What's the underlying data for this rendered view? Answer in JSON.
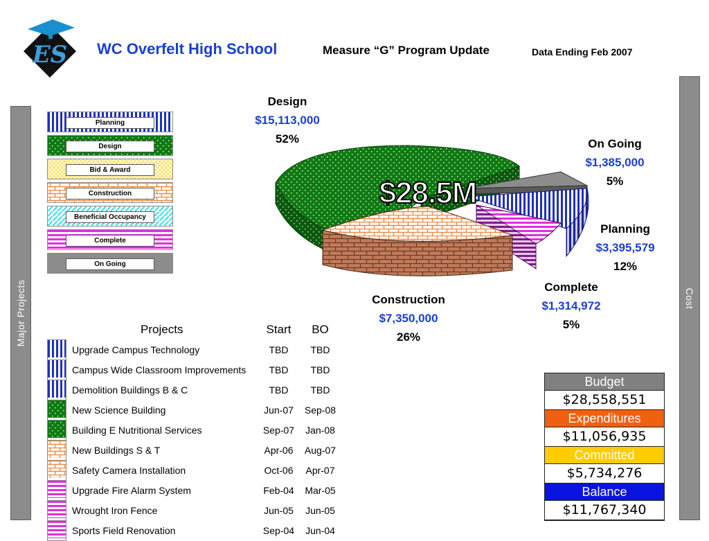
{
  "header": {
    "school": "WC Overfelt High School",
    "program": "Measure “G” Program Update",
    "data_ending": "Data Ending Feb 2007",
    "logo_text": "ES"
  },
  "side_labels": {
    "left": "Major Projects",
    "right": "Cost"
  },
  "legend": [
    {
      "label": "Planning",
      "pattern": "vstripe-blue"
    },
    {
      "label": "Design",
      "pattern": "dots-green"
    },
    {
      "label": "Bid & Award",
      "pattern": "crosshatch-yellow"
    },
    {
      "label": "Construction",
      "pattern": "brick-orange"
    },
    {
      "label": "Beneficial Occupancy",
      "pattern": "diag-cyan"
    },
    {
      "label": "Complete",
      "pattern": "hstripe-magenta"
    },
    {
      "label": "On Going",
      "pattern": "solid-gray"
    }
  ],
  "chart_data": {
    "type": "pie",
    "title": "$28.5M",
    "slices": [
      {
        "name": "Design",
        "value": 15113000,
        "value_label": "$15,113,000",
        "percent_label": "52%",
        "color": "#1e7a1e"
      },
      {
        "name": "On Going",
        "value": 1385000,
        "value_label": "$1,385,000",
        "percent_label": "5%",
        "color": "#808080"
      },
      {
        "name": "Planning",
        "value": 3395579,
        "value_label": "$3,395,579",
        "percent_label": "12%",
        "color": "#2434c8"
      },
      {
        "name": "Complete",
        "value": 1314972,
        "value_label": "$1,314,972",
        "percent_label": "5%",
        "color": "#cc33cc"
      },
      {
        "name": "Construction",
        "value": 7350000,
        "value_label": "$7,350,000",
        "percent_label": "26%",
        "color": "#f08a40"
      }
    ]
  },
  "projects": {
    "headers": [
      "Projects",
      "Start",
      "BO"
    ],
    "rows": [
      {
        "name": "Upgrade Campus Technology",
        "start": "TBD",
        "bo": "TBD",
        "pattern": "vstripe-blue"
      },
      {
        "name": "Campus Wide Classroom Improvements",
        "start": "TBD",
        "bo": "TBD",
        "pattern": "vstripe-blue"
      },
      {
        "name": "Demolition Buildings B & C",
        "start": "TBD",
        "bo": "TBD",
        "pattern": "vstripe-blue"
      },
      {
        "name": "New Science Building",
        "start": "Jun-07",
        "bo": "Sep-08",
        "pattern": "dots-green"
      },
      {
        "name": "Building E Nutritional Services",
        "start": "Sep-07",
        "bo": "Jan-08",
        "pattern": "dots-green"
      },
      {
        "name": "New Buildings S & T",
        "start": "Apr-06",
        "bo": "Aug-07",
        "pattern": "brick-orange"
      },
      {
        "name": "Safety Camera Installation",
        "start": "Oct-06",
        "bo": "Apr-07",
        "pattern": "brick-orange"
      },
      {
        "name": "Upgrade Fire Alarm System",
        "start": "Feb-04",
        "bo": "Mar-05",
        "pattern": "hstripe-magenta"
      },
      {
        "name": "Wrought Iron Fence",
        "start": "Jun-05",
        "bo": "Jun-05",
        "pattern": "hstripe-magenta"
      },
      {
        "name": "Sports Field Renovation",
        "start": "Sep-04",
        "bo": "Jun-04",
        "pattern": "hstripe-magenta"
      }
    ]
  },
  "budget": [
    {
      "label": "Budget",
      "value": "$28,558,551",
      "color": "#808080"
    },
    {
      "label": "Expenditures",
      "value": "$11,056,935",
      "color": "#f06010"
    },
    {
      "label": "Committed",
      "value": "$5,734,276",
      "color": "#ffcc00"
    },
    {
      "label": "Balance",
      "value": "$11,767,340",
      "color": "#0a14e0"
    }
  ]
}
